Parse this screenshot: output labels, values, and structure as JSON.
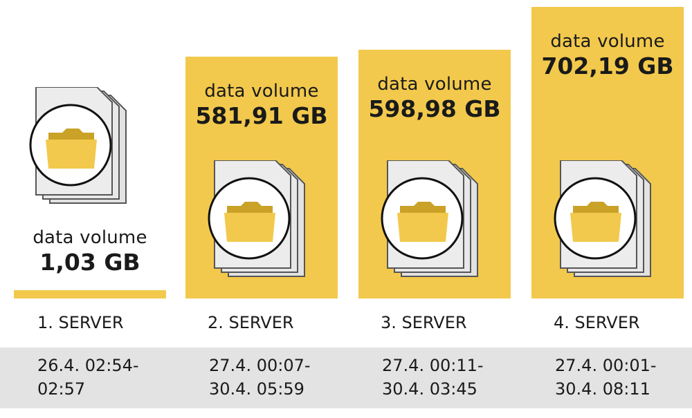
{
  "chart_data": {
    "type": "bar",
    "caption": "data volume",
    "unit": "GB",
    "categories": [
      "1. SERVER",
      "2. SERVER",
      "3. SERVER",
      "4. SERVER"
    ],
    "values": [
      1.03,
      581.91,
      598.98,
      702.19
    ],
    "value_labels": [
      "1,03 GB",
      "581,91 GB",
      "598,98 GB",
      "702,19 GB"
    ],
    "time_ranges": [
      {
        "start": "26.4. 02:54-",
        "end": "02:57"
      },
      {
        "start": "27.4. 00:07-",
        "end": "30.4. 05:59"
      },
      {
        "start": "27.4. 00:11-",
        "end": "30.4. 03:45"
      },
      {
        "start": "27.4. 00:01-",
        "end": "30.4. 08:11"
      }
    ],
    "bar_color": "#f2c94c",
    "icon": "folder-document-icon",
    "grid": false,
    "legend": "none"
  }
}
